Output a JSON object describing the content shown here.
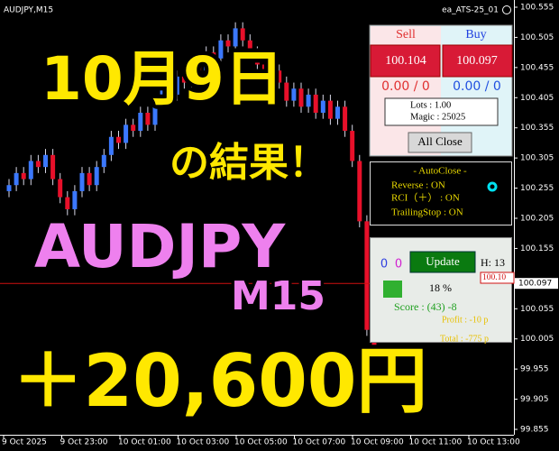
{
  "window": {
    "symbol_label": "AUDJPY,M15",
    "ea_label": "ea_ATS-25_01"
  },
  "chart_data": {
    "type": "candlestick",
    "time_labels": [
      "9 Oct 2025",
      "9 Oct 23:00",
      "10 Oct 01:00",
      "10 Oct 03:00",
      "10 Oct 05:00",
      "10 Oct 07:00",
      "10 Oct 09:00",
      "10 Oct 11:00",
      "10 Oct 13:00"
    ],
    "open": [
      100.25,
      100.26,
      100.28,
      100.27,
      100.3,
      100.29,
      100.31,
      100.27,
      100.24,
      100.22,
      100.25,
      100.28,
      100.26,
      100.29,
      100.31,
      100.34,
      100.33,
      100.36,
      100.35,
      100.38,
      100.36,
      100.4,
      100.42,
      100.41,
      100.44,
      100.43,
      100.46,
      100.45,
      100.48,
      100.47,
      100.5,
      100.49,
      100.52,
      100.5,
      100.48,
      100.46,
      100.44,
      100.45,
      100.43,
      100.4,
      100.42,
      100.39,
      100.41,
      100.38,
      100.4,
      100.37,
      100.39,
      100.35,
      100.3,
      100.2,
      100.02
    ],
    "high": [
      100.27,
      100.29,
      100.29,
      100.31,
      100.31,
      100.32,
      100.32,
      100.28,
      100.25,
      100.26,
      100.29,
      100.29,
      100.3,
      100.32,
      100.35,
      100.35,
      100.37,
      100.37,
      100.39,
      100.39,
      100.41,
      100.43,
      100.43,
      100.45,
      100.45,
      100.47,
      100.47,
      100.49,
      100.49,
      100.51,
      100.51,
      100.53,
      100.53,
      100.51,
      100.49,
      100.47,
      100.46,
      100.46,
      100.44,
      100.43,
      100.43,
      100.42,
      100.42,
      100.41,
      100.41,
      100.4,
      100.4,
      100.36,
      100.31,
      100.21,
      100.03
    ],
    "low": [
      100.24,
      100.25,
      100.26,
      100.26,
      100.28,
      100.28,
      100.26,
      100.23,
      100.21,
      100.21,
      100.24,
      100.25,
      100.25,
      100.28,
      100.3,
      100.32,
      100.32,
      100.34,
      100.34,
      100.35,
      100.35,
      100.39,
      100.4,
      100.4,
      100.42,
      100.42,
      100.44,
      100.44,
      100.46,
      100.46,
      100.48,
      100.48,
      100.49,
      100.47,
      100.45,
      100.43,
      100.43,
      100.42,
      100.39,
      100.39,
      100.38,
      100.38,
      100.37,
      100.37,
      100.36,
      100.36,
      100.34,
      100.29,
      100.19,
      100.01,
      99.98
    ],
    "close": [
      100.26,
      100.28,
      100.27,
      100.3,
      100.29,
      100.31,
      100.27,
      100.24,
      100.22,
      100.25,
      100.28,
      100.26,
      100.29,
      100.31,
      100.34,
      100.33,
      100.36,
      100.35,
      100.38,
      100.36,
      100.4,
      100.42,
      100.41,
      100.44,
      100.43,
      100.46,
      100.45,
      100.48,
      100.47,
      100.5,
      100.49,
      100.52,
      100.5,
      100.48,
      100.46,
      100.44,
      100.45,
      100.43,
      100.4,
      100.42,
      100.39,
      100.41,
      100.38,
      100.4,
      100.37,
      100.39,
      100.35,
      100.3,
      100.2,
      100.02,
      99.99
    ],
    "up_color": "#3b78ff",
    "down_color": "#e8102a",
    "ylim": [
      99.855,
      100.555
    ],
    "yticks": [
      100.555,
      100.505,
      100.455,
      100.405,
      100.355,
      100.305,
      100.255,
      100.205,
      100.155,
      100.055,
      100.005,
      99.955,
      99.905,
      99.855
    ],
    "current_price": 100.097,
    "price_line_color": "#d01010"
  },
  "panel_trade": {
    "sell_label": "Sell",
    "buy_label": "Buy",
    "sell_price": "100.104",
    "buy_price": "100.097",
    "sell_pos": "0.00 / 0",
    "buy_pos": "0.00 / 0",
    "lots": "Lots   : 1.00",
    "magic": "Magic : 25025",
    "all_close": "All Close"
  },
  "panel_autoclose": {
    "title": "- AutoClose -",
    "reverse": "Reverse        : ON",
    "rci": "RCI（＋）   : ON",
    "trailing": "TrailingStop : ON"
  },
  "panel_status": {
    "count_a": "0",
    "count_b": "0",
    "update": "Update",
    "hour": "H: 13",
    "percent": "18 %",
    "score": "Score : (43) -8",
    "profit": "Profit : -10 p",
    "total": "Total : -775 p",
    "price_tag": "100.10"
  },
  "overlay": {
    "date": "10月9日",
    "result": "の結果！",
    "pair": "AUDJPY",
    "timeframe": "M15",
    "gain": "＋20,600円"
  }
}
